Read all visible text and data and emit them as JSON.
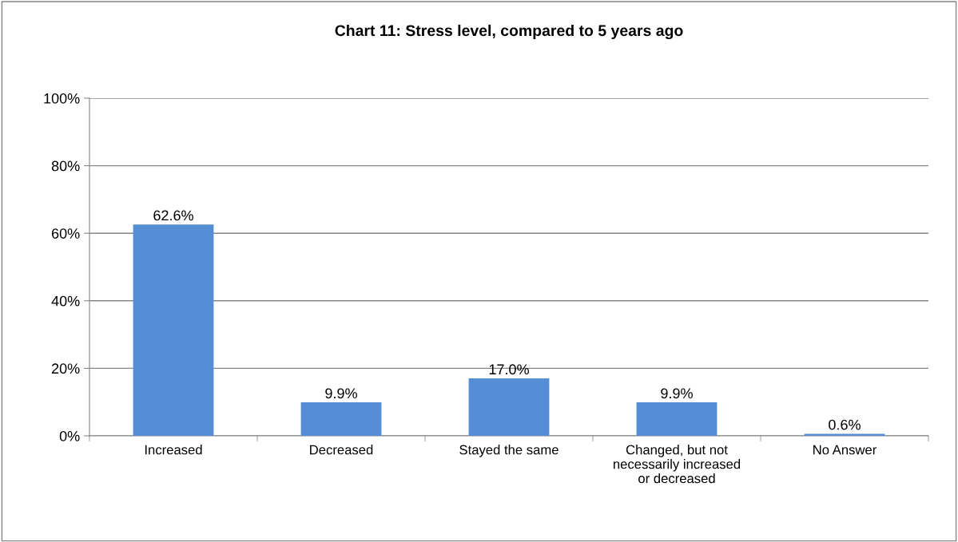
{
  "chart_data": {
    "type": "bar",
    "title": "Chart 11: Stress level, compared to 5 years ago",
    "categories": [
      "Increased",
      "Decreased",
      "Stayed the same",
      "Changed, but not\nnecessarily increased\nor decreased",
      "No Answer"
    ],
    "values": [
      62.6,
      9.9,
      17.0,
      9.9,
      0.6
    ],
    "value_labels": [
      "62.6%",
      "9.9%",
      "17.0%",
      "9.9%",
      "0.6%"
    ],
    "color": "#558ed5",
    "ylim": [
      0,
      100
    ],
    "yticks": [
      {
        "value": 0,
        "label": "0%"
      },
      {
        "value": 20,
        "label": "20%"
      },
      {
        "value": 40,
        "label": "40%"
      },
      {
        "value": 60,
        "label": "60%"
      },
      {
        "value": 80,
        "label": "80%"
      },
      {
        "value": 100,
        "label": "100%"
      }
    ],
    "grid": "y",
    "legend": false
  }
}
